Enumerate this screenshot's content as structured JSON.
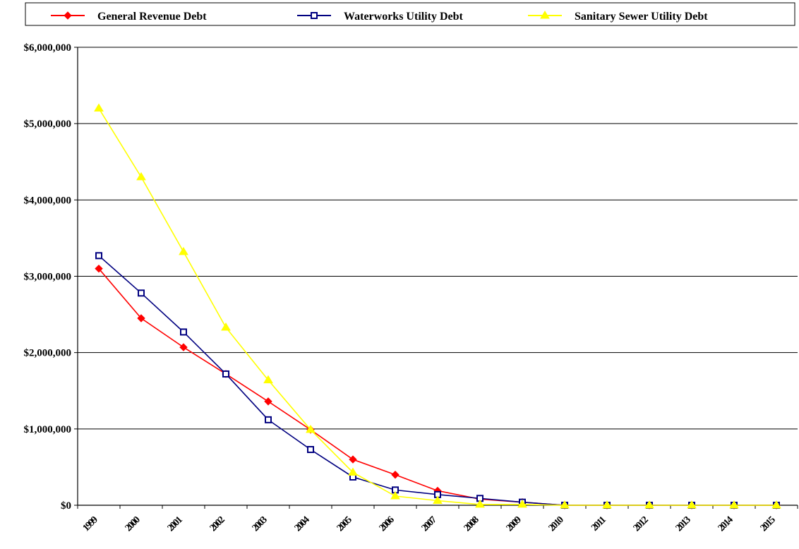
{
  "chart_data": {
    "type": "line",
    "x": [
      "1999",
      "2000",
      "2001",
      "2002",
      "2003",
      "2004",
      "2005",
      "2006",
      "2007",
      "2008",
      "2009",
      "2010",
      "2011",
      "2012",
      "2013",
      "2014",
      "2015"
    ],
    "ylim": [
      0,
      6000000
    ],
    "yticks": [
      0,
      1000000,
      2000000,
      3000000,
      4000000,
      5000000,
      6000000
    ],
    "ytick_labels": [
      "$0",
      "$1,000,000",
      "$2,000,000",
      "$3,000,000",
      "$4,000,000",
      "$5,000,000",
      "$6,000,000"
    ],
    "grid": true,
    "legend_position": "top",
    "series": [
      {
        "name": "General Revenue Debt",
        "color": "#ff0000",
        "marker": "diamond",
        "values": [
          3100000,
          2450000,
          2070000,
          1720000,
          1360000,
          990000,
          600000,
          400000,
          190000,
          80000,
          40000,
          0,
          0,
          0,
          0,
          0,
          0
        ]
      },
      {
        "name": "Waterworks Utility Debt",
        "color": "#000080",
        "marker": "square",
        "values": [
          3270000,
          2780000,
          2270000,
          1720000,
          1120000,
          730000,
          370000,
          200000,
          140000,
          90000,
          40000,
          0,
          0,
          0,
          0,
          0,
          0
        ]
      },
      {
        "name": "Sanitary Sewer Utility Debt",
        "color": "#ffff00",
        "marker": "triangle",
        "values": [
          5200000,
          4300000,
          3320000,
          2330000,
          1640000,
          990000,
          430000,
          120000,
          60000,
          10000,
          10000,
          0,
          0,
          0,
          0,
          0,
          0
        ]
      }
    ]
  }
}
